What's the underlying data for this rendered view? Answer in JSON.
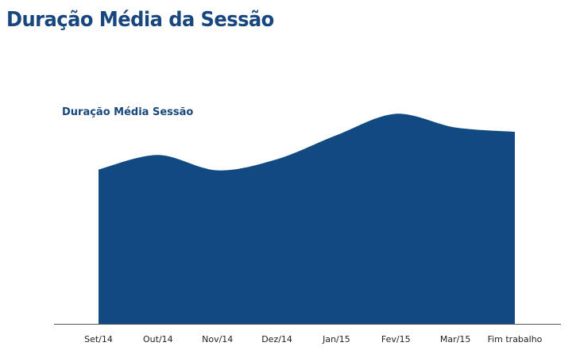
{
  "page": {
    "title": "Duração Média da Sessão"
  },
  "chart_data": {
    "type": "area",
    "title": "Duração Média Sessão",
    "xlabel": "",
    "ylabel": "",
    "categories": [
      "Set/14",
      "Out/14",
      "Nov/14",
      "Dez/14",
      "Jan/15",
      "Fev/15",
      "Mar/15",
      "Fim trabalho"
    ],
    "values": [
      180,
      197,
      179,
      192,
      220,
      245,
      229,
      224
    ],
    "ylim": [
      0,
      250
    ],
    "grid": false,
    "legend": "none",
    "colors": {
      "area": "#114a80",
      "axis": "#555555",
      "title": "#17477e"
    }
  }
}
